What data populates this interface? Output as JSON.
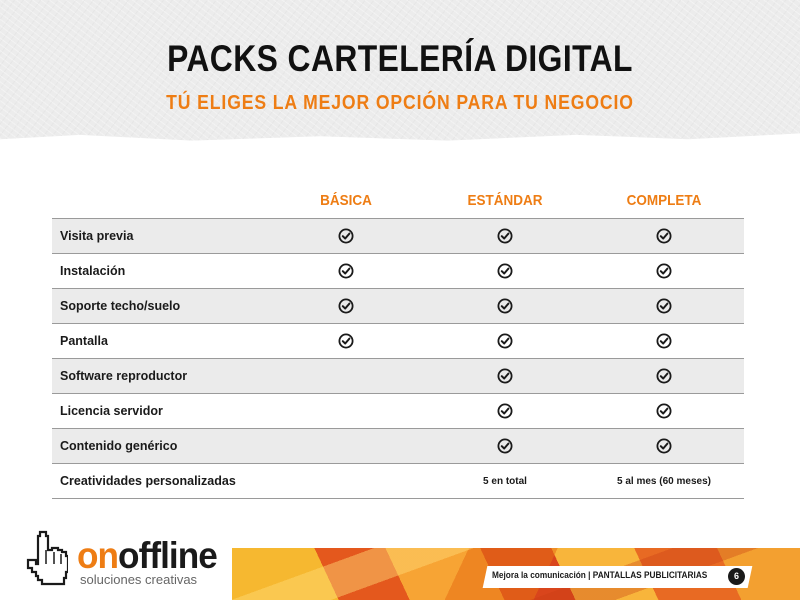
{
  "title": "PACKS CARTELERÍA DIGITAL",
  "subtitle": "TÚ ELIGES LA MEJOR OPCIÓN PARA TU NEGOCIO",
  "plans": [
    "BÁSICA",
    "ESTÁNDAR",
    "COMPLETA"
  ],
  "rows": [
    {
      "label": "Visita previa",
      "values": [
        "check",
        "check",
        "check"
      ]
    },
    {
      "label": "Instalación",
      "values": [
        "check",
        "check",
        "check"
      ]
    },
    {
      "label": "Soporte techo/suelo",
      "values": [
        "check",
        "check",
        "check"
      ]
    },
    {
      "label": "Pantalla",
      "values": [
        "check",
        "check",
        "check"
      ]
    },
    {
      "label": "Software reproductor",
      "values": [
        "",
        "check",
        "check"
      ]
    },
    {
      "label": "Licencia servidor",
      "values": [
        "",
        "check",
        "check"
      ]
    },
    {
      "label": "Contenido genérico",
      "values": [
        "",
        "check",
        "check"
      ]
    },
    {
      "label": "Creatividades personalizadas",
      "values": [
        "",
        "5 en total",
        "5 al mes (60 meses)"
      ]
    }
  ],
  "footer": {
    "tagline": "Mejora la comunicación | PANTALLAS PUBLICITARIAS",
    "page_number": "6"
  },
  "logo": {
    "word_on": "on",
    "word_offline": "offline",
    "tagline": "soluciones creativas"
  },
  "colors": {
    "accent": "#ee7d14",
    "text": "#1a1a1a",
    "row_shade": "#ebebeb"
  },
  "icons": {
    "check": "check-circle-icon",
    "logo": "hand-cursor-icon"
  }
}
